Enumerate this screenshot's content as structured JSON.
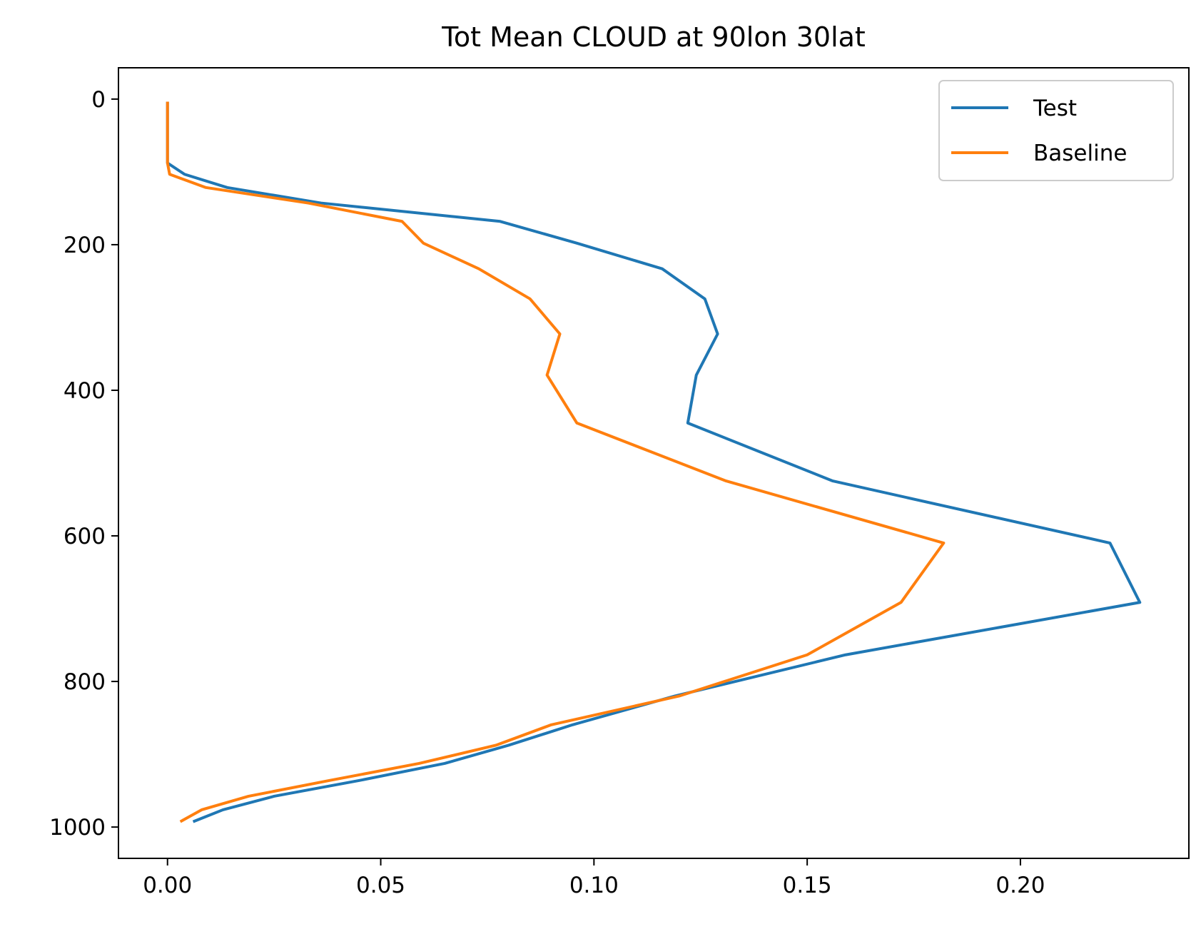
{
  "chart_data": {
    "type": "line",
    "title": "Tot Mean CLOUD at 90lon 30lat",
    "xlabel": "",
    "ylabel": "",
    "xlim": [
      -0.0115,
      0.2395
    ],
    "ylim": [
      1043,
      -43
    ],
    "y_inverted": true,
    "grid": false,
    "legend_position": "upper right",
    "x_ticks": [
      0.0,
      0.05,
      0.1,
      0.15,
      0.2
    ],
    "x_tick_labels": [
      "0.00",
      "0.05",
      "0.10",
      "0.15",
      "0.20"
    ],
    "y_ticks": [
      0,
      200,
      400,
      600,
      800,
      1000
    ],
    "y_tick_labels": [
      "0",
      "200",
      "400",
      "600",
      "800",
      "1000"
    ],
    "series": [
      {
        "name": "Test",
        "color": "#1f77b4",
        "points": [
          [
            0.0,
            3.6
          ],
          [
            0.0,
            7.6
          ],
          [
            0.0,
            14.4
          ],
          [
            0.0,
            24.6
          ],
          [
            0.0,
            38.3
          ],
          [
            0.0,
            54.6
          ],
          [
            0.0,
            72.0
          ],
          [
            0.0,
            87.8
          ],
          [
            0.004,
            103.3
          ],
          [
            0.014,
            121.5
          ],
          [
            0.036,
            142.8
          ],
          [
            0.078,
            168.0
          ],
          [
            0.096,
            197.9
          ],
          [
            0.116,
            233.1
          ],
          [
            0.126,
            274.4
          ],
          [
            0.129,
            322.6
          ],
          [
            0.124,
            379.1
          ],
          [
            0.122,
            445.0
          ],
          [
            0.156,
            524.6
          ],
          [
            0.221,
            609.8
          ],
          [
            0.228,
            691.4
          ],
          [
            0.159,
            763.4
          ],
          [
            0.119,
            820.0
          ],
          [
            0.095,
            859.5
          ],
          [
            0.08,
            887.6
          ],
          [
            0.065,
            912.6
          ],
          [
            0.045,
            936.0
          ],
          [
            0.025,
            957.7
          ],
          [
            0.013,
            976.3
          ],
          [
            0.006,
            992.6
          ]
        ]
      },
      {
        "name": "Baseline",
        "color": "#ff7f0e",
        "points": [
          [
            0.0,
            3.6
          ],
          [
            0.0,
            7.6
          ],
          [
            0.0,
            14.4
          ],
          [
            0.0,
            24.6
          ],
          [
            0.0,
            38.3
          ],
          [
            0.0,
            54.6
          ],
          [
            0.0,
            72.0
          ],
          [
            0.0,
            87.8
          ],
          [
            0.0005,
            103.3
          ],
          [
            0.009,
            121.5
          ],
          [
            0.033,
            142.8
          ],
          [
            0.055,
            168.0
          ],
          [
            0.06,
            197.9
          ],
          [
            0.073,
            233.1
          ],
          [
            0.085,
            274.4
          ],
          [
            0.092,
            322.6
          ],
          [
            0.089,
            379.1
          ],
          [
            0.096,
            445.0
          ],
          [
            0.131,
            524.6
          ],
          [
            0.182,
            609.8
          ],
          [
            0.172,
            691.4
          ],
          [
            0.15,
            763.4
          ],
          [
            0.12,
            820.0
          ],
          [
            0.09,
            859.5
          ],
          [
            0.077,
            887.6
          ],
          [
            0.059,
            912.6
          ],
          [
            0.038,
            936.0
          ],
          [
            0.019,
            957.7
          ],
          [
            0.008,
            976.3
          ],
          [
            0.003,
            992.6
          ]
        ]
      }
    ]
  }
}
